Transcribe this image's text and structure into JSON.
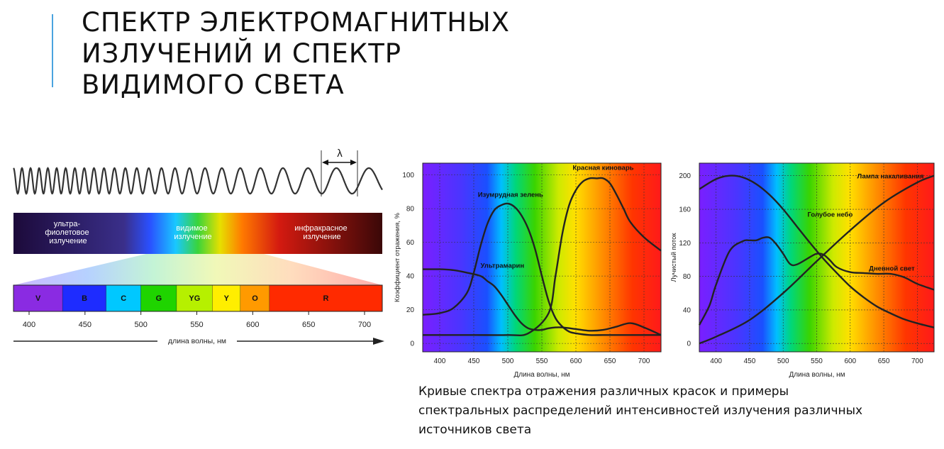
{
  "title": {
    "lines": [
      "СПЕКТР ЭЛЕКТРОМАГНИТНЫХ",
      "ИЗЛУЧЕНИЙ И СПЕКТР",
      "ВИДИМОГО СВЕТА"
    ]
  },
  "spectrum": {
    "wave_symbol": "λ",
    "bands": [
      {
        "lines": [
          "ультра-",
          "фиолетовое",
          "излучение"
        ]
      },
      {
        "lines": [
          "видимое",
          "излучение"
        ]
      },
      {
        "lines": [
          "инфракрасное",
          "излучение"
        ]
      }
    ],
    "colors": [
      {
        "label": "V",
        "from": 380,
        "to": 430,
        "color": "#8a2be2"
      },
      {
        "label": "B",
        "from": 430,
        "to": 469,
        "color": "#1e2cff"
      },
      {
        "label": "C",
        "from": 469,
        "to": 500,
        "color": "#00c8ff"
      },
      {
        "label": "G",
        "from": 500,
        "to": 532,
        "color": "#1fd400"
      },
      {
        "label": "YG",
        "from": 532,
        "to": 564,
        "color": "#b6f000"
      },
      {
        "label": "Y",
        "from": 564,
        "to": 589,
        "color": "#ffee00"
      },
      {
        "label": "O",
        "from": 589,
        "to": 615,
        "color": "#ff9a00"
      },
      {
        "label": "R",
        "from": 615,
        "to": 725,
        "color": "#ff2a00"
      }
    ],
    "ticks": [
      "400",
      "450",
      "500",
      "550",
      "600",
      "650",
      "700"
    ],
    "axis_label": "длина волны, нм"
  },
  "chart_data": [
    {
      "type": "line",
      "xlabel": "Длина волны, нм",
      "ylabel": "Коэффициент отражения, %",
      "xlim": [
        375,
        725
      ],
      "ylim": [
        -5,
        107
      ],
      "xticks": [
        400,
        450,
        500,
        550,
        600,
        650,
        700
      ],
      "yticks": [
        0,
        20,
        40,
        60,
        80,
        100
      ],
      "grid": true,
      "background": "visible spectrum gradient",
      "series": [
        {
          "name": "Изумрудная зелень",
          "x": [
            375,
            400,
            420,
            440,
            450,
            460,
            470,
            480,
            490,
            500,
            510,
            520,
            530,
            540,
            550,
            560,
            570,
            580,
            590,
            600,
            620,
            640,
            660,
            680,
            700,
            725
          ],
          "y": [
            17,
            18,
            21,
            30,
            42,
            58,
            71,
            79,
            82,
            83,
            81,
            76,
            68,
            56,
            40,
            25,
            15,
            10,
            7,
            6,
            5,
            5,
            5,
            5,
            5,
            5
          ]
        },
        {
          "name": "Красная киноварь",
          "x": [
            375,
            400,
            450,
            500,
            530,
            560,
            570,
            580,
            590,
            600,
            610,
            620,
            630,
            640,
            650,
            660,
            670,
            680,
            700,
            725
          ],
          "y": [
            5,
            5,
            5,
            5,
            6,
            18,
            40,
            65,
            82,
            91,
            96,
            98,
            98,
            98,
            95,
            88,
            80,
            72,
            63,
            55
          ]
        },
        {
          "name": "Ультрамарин",
          "x": [
            375,
            400,
            420,
            440,
            460,
            470,
            480,
            490,
            500,
            510,
            520,
            530,
            540,
            550,
            560,
            570,
            580,
            600,
            620,
            640,
            660,
            680,
            700,
            725
          ],
          "y": [
            44,
            44,
            43.5,
            42,
            40,
            37,
            34,
            29,
            23,
            17,
            12,
            9,
            8,
            8,
            9,
            9.5,
            9.5,
            8.5,
            7.5,
            8,
            10,
            12,
            9.5,
            5
          ]
        }
      ],
      "annotations": [
        "Красная киноварь",
        "Изумрудная зелень",
        "Ультрамарин"
      ]
    },
    {
      "type": "line",
      "xlabel": "Длина волны, нм",
      "ylabel": "Лучистый поток",
      "xlim": [
        375,
        725
      ],
      "ylim": [
        -10,
        215
      ],
      "xticks": [
        400,
        450,
        500,
        550,
        600,
        650,
        700
      ],
      "yticks": [
        0,
        40,
        80,
        120,
        160,
        200
      ],
      "grid": true,
      "background": "visible spectrum gradient",
      "series": [
        {
          "name": "Лампа накаливания",
          "x": [
            375,
            400,
            450,
            500,
            550,
            600,
            650,
            700,
            725
          ],
          "y": [
            0,
            8,
            28,
            60,
            98,
            135,
            168,
            192,
            200
          ]
        },
        {
          "name": "Голубое небо",
          "x": [
            375,
            400,
            420,
            440,
            460,
            480,
            500,
            520,
            540,
            560,
            580,
            600,
            620,
            640,
            660,
            680,
            700,
            725
          ],
          "y": [
            184,
            196,
            200,
            198,
            190,
            177,
            160,
            140,
            120,
            101,
            84,
            68,
            55,
            44,
            36,
            29,
            24,
            19
          ]
        },
        {
          "name": "Дневной свет",
          "x": [
            375,
            390,
            400,
            420,
            440,
            450,
            460,
            470,
            480,
            490,
            500,
            510,
            520,
            540,
            550,
            560,
            570,
            580,
            600,
            620,
            640,
            660,
            680,
            700,
            725
          ],
          "y": [
            22,
            45,
            70,
            110,
            122,
            123,
            123,
            126,
            126,
            118,
            107,
            95,
            94,
            103,
            107,
            106,
            99,
            91,
            85,
            84,
            83,
            83,
            79,
            71,
            64
          ]
        }
      ],
      "annotations": [
        "Лампа накаливания",
        "Голубое небо",
        "Дневной свет"
      ]
    }
  ],
  "caption": {
    "lines": [
      "Кривые спектра отражения различных красок и примеры",
      "спектральных распределений интенсивностей излучения различных",
      "источников света"
    ]
  }
}
